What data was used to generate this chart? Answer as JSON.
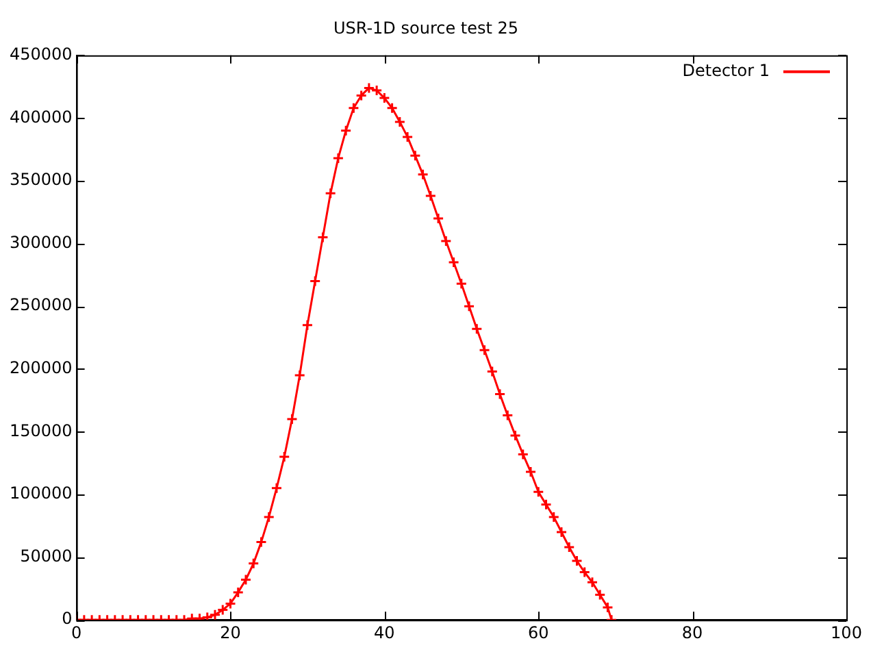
{
  "chart_data": {
    "type": "line",
    "title": "USR-1D source test 25",
    "x": [
      0,
      1,
      2,
      3,
      4,
      5,
      6,
      7,
      8,
      9,
      10,
      11,
      12,
      13,
      14,
      15,
      16,
      17,
      18,
      19,
      20,
      21,
      22,
      23,
      24,
      25,
      26,
      27,
      28,
      29,
      30,
      31,
      32,
      33,
      34,
      35,
      36,
      37,
      38,
      39,
      40,
      41,
      42,
      43,
      44,
      45,
      46,
      47,
      48,
      49,
      50,
      51,
      52,
      53,
      54,
      55,
      56,
      57,
      58,
      59,
      60,
      61,
      62,
      63,
      64,
      65,
      66,
      67,
      68,
      69,
      69.5
    ],
    "series": [
      {
        "name": "Detector 1",
        "color": "#ff0000",
        "values": [
          0,
          0,
          0,
          0,
          0,
          0,
          0,
          0,
          0,
          0,
          0,
          0,
          0,
          0,
          0,
          1000,
          1000,
          2000,
          4000,
          8000,
          13000,
          22000,
          32000,
          45000,
          62000,
          82000,
          105000,
          130000,
          160000,
          195000,
          235000,
          270000,
          305000,
          340000,
          368000,
          390000,
          408000,
          418000,
          424000,
          422000,
          416000,
          408000,
          397000,
          385000,
          370000,
          355000,
          338000,
          320000,
          302000,
          285000,
          268000,
          250000,
          232000,
          215000,
          198000,
          180000,
          163000,
          147000,
          132000,
          118000,
          102000,
          92000,
          82000,
          70000,
          58000,
          47000,
          38000,
          30000,
          20000,
          10000,
          0
        ]
      }
    ],
    "xlim": [
      0,
      100
    ],
    "xticks": [
      0,
      20,
      40,
      60,
      80,
      100
    ],
    "ylim": [
      0,
      450000
    ],
    "yticks": [
      0,
      50000,
      100000,
      150000,
      200000,
      250000,
      300000,
      350000,
      400000,
      450000
    ],
    "grid": false,
    "legend": "top right",
    "marker": "cross",
    "line_style": "solid"
  }
}
